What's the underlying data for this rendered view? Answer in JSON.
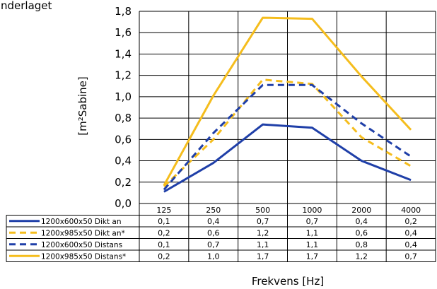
{
  "caption": "an underlaget",
  "colors": {
    "blue": "#1f3fa8",
    "yellow": "#f5bd1d"
  },
  "chart_data": {
    "type": "line",
    "title": "",
    "ylabel": "[m²Sabine]",
    "xlabel": "Frekvens [Hz]",
    "ylim": [
      0,
      1.8
    ],
    "yticks": [
      "0,0",
      "0,2",
      "0,4",
      "0,6",
      "0,8",
      "1,0",
      "1,2",
      "1,4",
      "1,6",
      "1,8"
    ],
    "categories": [
      "125",
      "250",
      "500",
      "1000",
      "2000",
      "4000"
    ],
    "series": [
      {
        "name": "1200x600x50 Dikt an",
        "color": "#1f3fa8",
        "dash": "solid",
        "values": [
          0.11,
          0.38,
          0.74,
          0.71,
          0.4,
          0.22
        ],
        "table": [
          "0,1",
          "0,4",
          "0,7",
          "0,7",
          "0,4",
          "0,2"
        ]
      },
      {
        "name": "1200x985x50 Dikt an*",
        "color": "#f5bd1d",
        "dash": "dashed",
        "values": [
          0.16,
          0.6,
          1.16,
          1.12,
          0.62,
          0.35
        ],
        "table": [
          "0,2",
          "0,6",
          "1,2",
          "1,1",
          "0,6",
          "0,4"
        ]
      },
      {
        "name": "1200x600x50 Distans",
        "color": "#1f3fa8",
        "dash": "dashed",
        "values": [
          0.13,
          0.66,
          1.11,
          1.11,
          0.75,
          0.44
        ],
        "table": [
          "0,1",
          "0,7",
          "1,1",
          "1,1",
          "0,8",
          "0,4"
        ]
      },
      {
        "name": "1200x985x50 Distans*",
        "color": "#f5bd1d",
        "dash": "solid",
        "values": [
          0.17,
          1.01,
          1.74,
          1.73,
          1.19,
          0.69
        ],
        "table": [
          "0,2",
          "1,0",
          "1,7",
          "1,7",
          "1,2",
          "0,7"
        ]
      }
    ]
  }
}
